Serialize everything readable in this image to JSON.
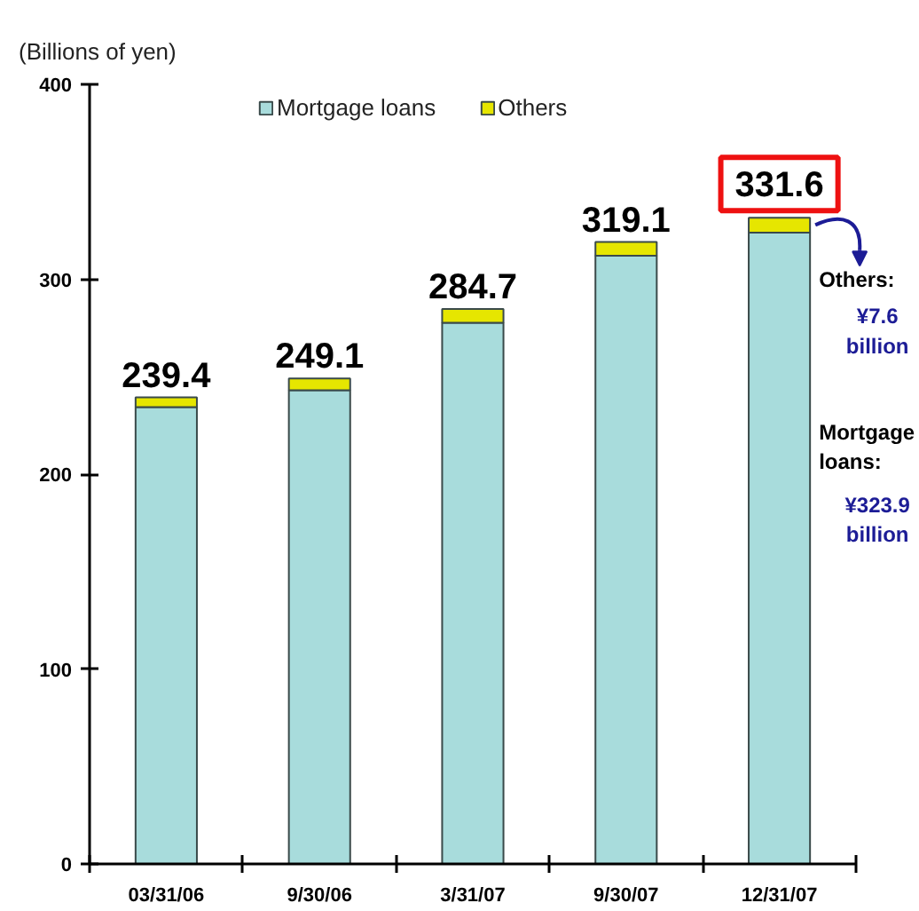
{
  "chart_data": {
    "type": "bar",
    "ylabel": "(Billions of yen)",
    "categories": [
      "03/31/06",
      "9/30/06",
      "3/31/07",
      "9/30/07",
      "12/31/07"
    ],
    "stacked": true,
    "series": [
      {
        "name": "Mortgage loans",
        "color": "#a8dcdc",
        "values": [
          234.4,
          243.1,
          277.7,
          312.1,
          323.9
        ]
      },
      {
        "name": "Others",
        "color": "#e6e600",
        "values": [
          5,
          6,
          7,
          7,
          7.6
        ]
      }
    ],
    "totals": [
      "239.4",
      "249.1",
      "284.7",
      "319.1",
      "331.6"
    ],
    "ylim": [
      0,
      400
    ],
    "yticks": [
      0,
      100,
      200,
      300,
      400
    ],
    "legend": "top",
    "grid": false,
    "annotations": [
      {
        "text": "Others: ¥7.6 billion",
        "x": "12/31/07",
        "y": 331.5
      },
      "Mortgage loans: ¥323.9 billion"
    ]
  }
}
